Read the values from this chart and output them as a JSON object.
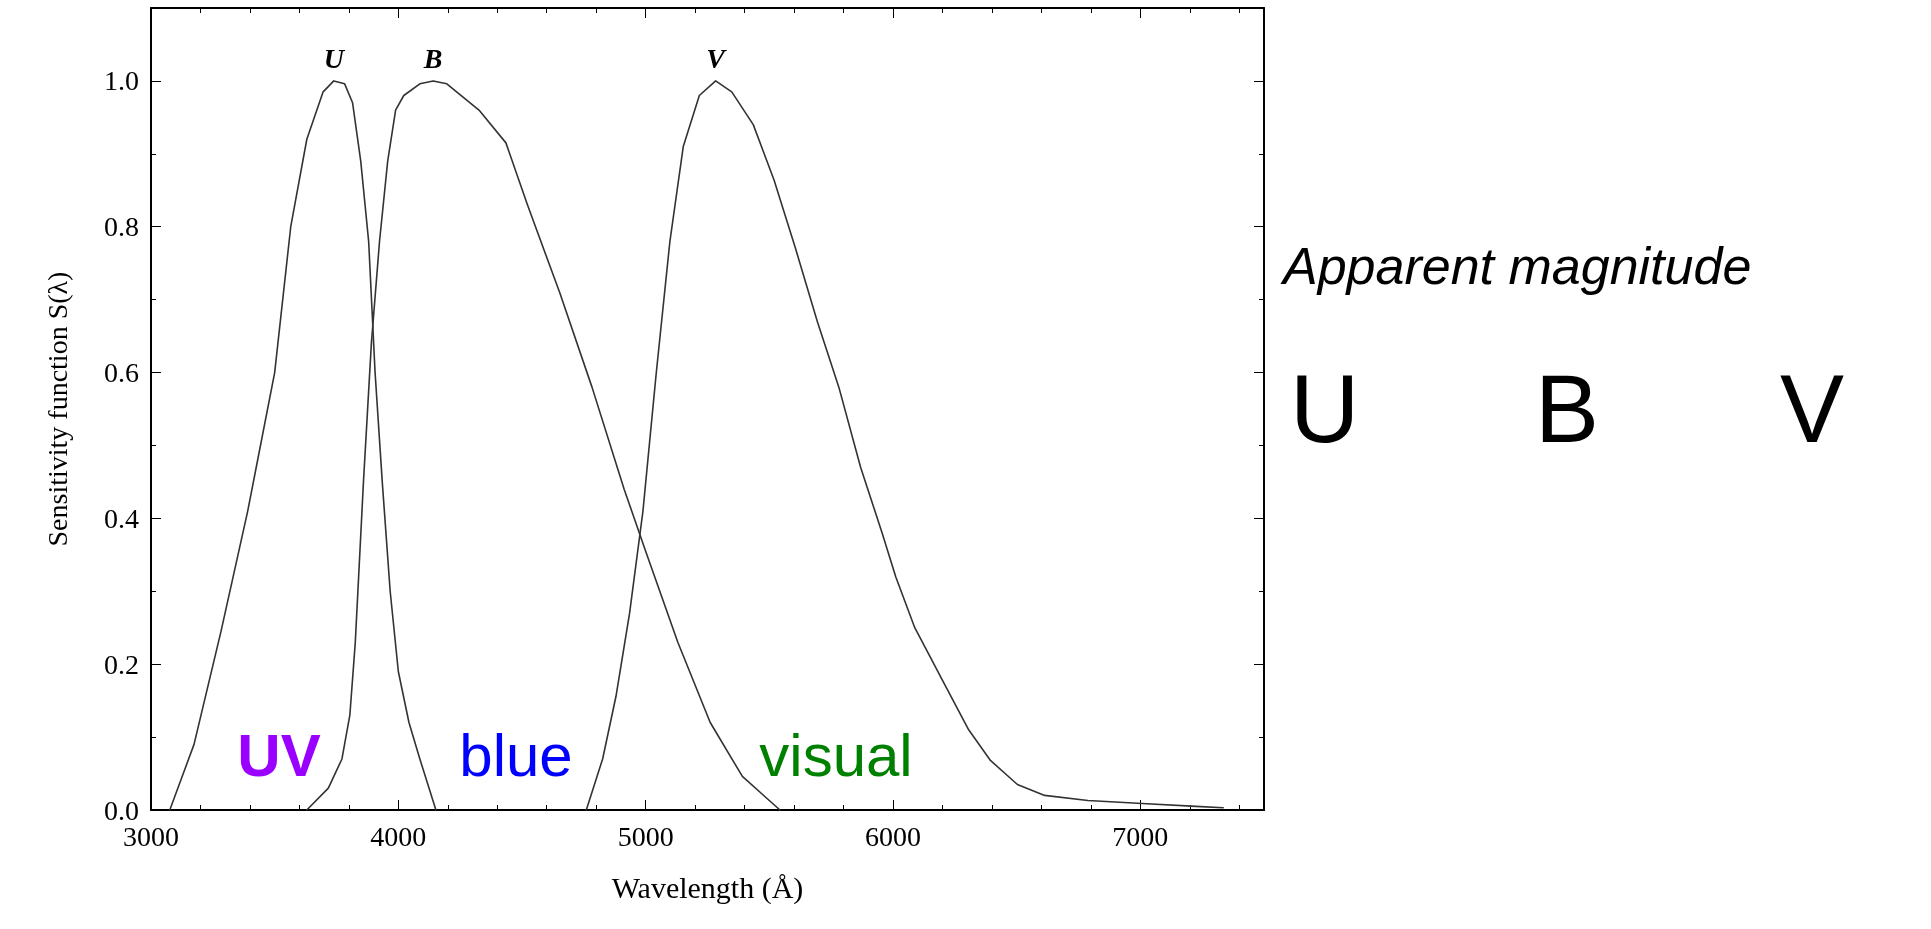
{
  "chart_data": {
    "type": "line",
    "xlabel": "Wavelength (Å)",
    "ylabel": "Sensitivity function S(λ)",
    "xlim": [
      3000,
      7500
    ],
    "xticks": [
      3000,
      4000,
      5000,
      6000,
      7000
    ],
    "ylim": [
      0,
      1.1
    ],
    "yticks": [
      {
        "value": 0,
        "label": "0.0"
      },
      {
        "value": 0.2,
        "label": "0.2"
      },
      {
        "value": 0.4,
        "label": "0.4"
      },
      {
        "value": 0.6,
        "label": "0.6"
      },
      {
        "value": 0.8,
        "label": "0.8"
      },
      {
        "value": 1,
        "label": "1.0"
      }
    ],
    "grid": false,
    "legend": false,
    "marker": "none",
    "line_style": "solid",
    "series": [
      {
        "name": "U",
        "color": "#333333",
        "x": [
          3076,
          3174,
          3283,
          3391,
          3500,
          3565,
          3630,
          3696,
          3739,
          3783,
          3815,
          3848,
          3880,
          3906,
          3935,
          3967,
          4000,
          4043,
          4087,
          4152
        ],
        "values": [
          0,
          0.09,
          0.245,
          0.41,
          0.6,
          0.8,
          0.92,
          0.985,
          1.0,
          0.996,
          0.97,
          0.89,
          0.78,
          0.6,
          0.45,
          0.3,
          0.19,
          0.12,
          0.07,
          0
        ]
      },
      {
        "name": "B",
        "color": "#333333",
        "x": [
          3630,
          3717,
          3772,
          3804,
          3826,
          3859,
          3891,
          3924,
          3957,
          3989,
          4022,
          4087,
          4141,
          4196,
          4326,
          4435,
          4522,
          4652,
          4783,
          4913,
          5000,
          5130,
          5261,
          5391,
          5543
        ],
        "values": [
          0,
          0.03,
          0.07,
          0.13,
          0.23,
          0.45,
          0.64,
          0.78,
          0.89,
          0.96,
          0.98,
          0.996,
          1.0,
          0.996,
          0.96,
          0.915,
          0.83,
          0.71,
          0.58,
          0.44,
          0.355,
          0.23,
          0.12,
          0.046,
          0
        ]
      },
      {
        "name": "V",
        "color": "#333333",
        "x": [
          4760,
          4826,
          4880,
          4935,
          4989,
          5043,
          5098,
          5152,
          5217,
          5283,
          5348,
          5435,
          5519,
          5606,
          5694,
          5781,
          5869,
          5956,
          6011,
          6088,
          6197,
          6306,
          6394,
          6503,
          6613,
          6788,
          7007,
          7225,
          7335
        ],
        "values": [
          0,
          0.07,
          0.156,
          0.27,
          0.41,
          0.6,
          0.78,
          0.91,
          0.98,
          1.0,
          0.985,
          0.94,
          0.864,
          0.77,
          0.67,
          0.58,
          0.47,
          0.38,
          0.32,
          0.25,
          0.18,
          0.11,
          0.068,
          0.035,
          0.02,
          0.013,
          0.009,
          0.005,
          0.003
        ]
      }
    ],
    "annotations": [
      "UV",
      "blue",
      "visual",
      "Apparent magnitude",
      "U",
      "B",
      "V"
    ]
  }
}
